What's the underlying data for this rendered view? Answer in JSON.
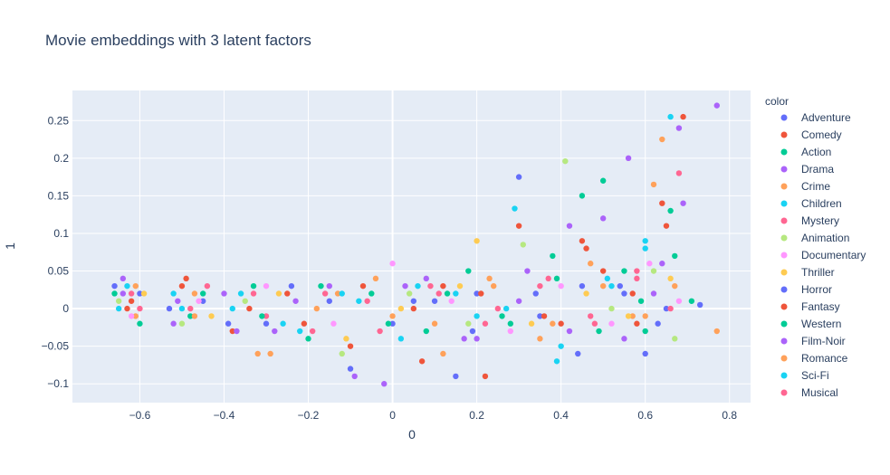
{
  "chart_data": {
    "type": "scatter",
    "title": "Movie embeddings with 3 latent factors",
    "xlabel": "0",
    "ylabel": "1",
    "xlim": [
      -0.76,
      0.85
    ],
    "ylim": [
      -0.125,
      0.29
    ],
    "x_ticks": [
      -0.6,
      -0.4,
      -0.2,
      0,
      0.2,
      0.4,
      0.6,
      0.8
    ],
    "x_tick_labels": [
      "−0.6",
      "−0.4",
      "−0.2",
      "0",
      "0.2",
      "0.4",
      "0.6",
      "0.8"
    ],
    "y_ticks": [
      -0.1,
      -0.05,
      0,
      0.05,
      0.1,
      0.15,
      0.2,
      0.25
    ],
    "y_tick_labels": [
      "−0.1",
      "−0.05",
      "0",
      "0.05",
      "0.1",
      "0.15",
      "0.2",
      "0.25"
    ],
    "grid": true,
    "legend": {
      "title": "color",
      "placement": "right"
    },
    "series": [
      {
        "name": "Adventure",
        "color": "#636efa",
        "points": [
          [
            -0.6,
            0.02
          ],
          [
            -0.45,
            0.01
          ],
          [
            -0.3,
            -0.02
          ],
          [
            -0.15,
            0.01
          ],
          [
            0.0,
            -0.02
          ],
          [
            0.1,
            0.01
          ],
          [
            0.15,
            -0.09
          ],
          [
            0.2,
            0.02
          ],
          [
            0.3,
            0.175
          ],
          [
            0.35,
            -0.01
          ],
          [
            0.45,
            0.03
          ],
          [
            0.55,
            0.02
          ],
          [
            0.6,
            -0.06
          ],
          [
            0.65,
            0.0
          ],
          [
            0.73,
            0.005
          ]
        ]
      },
      {
        "name": "Comedy",
        "color": "#ef553b",
        "points": [
          [
            -0.62,
            0.01
          ],
          [
            -0.5,
            0.03
          ],
          [
            -0.38,
            -0.03
          ],
          [
            -0.25,
            0.02
          ],
          [
            -0.1,
            -0.05
          ],
          [
            0.05,
            0.0
          ],
          [
            0.12,
            0.03
          ],
          [
            0.22,
            -0.09
          ],
          [
            0.3,
            0.11
          ],
          [
            0.4,
            -0.02
          ],
          [
            0.45,
            0.09
          ],
          [
            0.5,
            0.05
          ],
          [
            0.58,
            -0.02
          ],
          [
            0.64,
            0.14
          ],
          [
            0.69,
            0.255
          ]
        ]
      },
      {
        "name": "Action",
        "color": "#00cc96",
        "points": [
          [
            -0.66,
            0.02
          ],
          [
            -0.48,
            -0.01
          ],
          [
            -0.33,
            0.03
          ],
          [
            -0.2,
            -0.04
          ],
          [
            -0.05,
            0.02
          ],
          [
            0.08,
            -0.03
          ],
          [
            0.18,
            0.05
          ],
          [
            0.28,
            -0.02
          ],
          [
            0.38,
            0.07
          ],
          [
            0.45,
            0.15
          ],
          [
            0.5,
            0.17
          ],
          [
            0.55,
            0.05
          ],
          [
            0.6,
            -0.03
          ],
          [
            0.66,
            0.13
          ],
          [
            0.71,
            0.01
          ]
        ]
      },
      {
        "name": "Drama",
        "color": "#ab63fa",
        "points": [
          [
            -0.64,
            0.04
          ],
          [
            -0.52,
            -0.02
          ],
          [
            -0.4,
            0.02
          ],
          [
            -0.28,
            -0.03
          ],
          [
            -0.15,
            0.03
          ],
          [
            -0.02,
            -0.1
          ],
          [
            0.08,
            0.04
          ],
          [
            0.2,
            -0.04
          ],
          [
            0.32,
            0.05
          ],
          [
            0.42,
            -0.03
          ],
          [
            0.5,
            0.12
          ],
          [
            0.56,
            0.2
          ],
          [
            0.62,
            0.02
          ],
          [
            0.68,
            0.24
          ],
          [
            0.77,
            0.27
          ]
        ]
      },
      {
        "name": "Crime",
        "color": "#ffa15a",
        "points": [
          [
            -0.61,
            -0.01
          ],
          [
            -0.47,
            0.02
          ],
          [
            -0.32,
            -0.06
          ],
          [
            -0.18,
            0.0
          ],
          [
            -0.04,
            0.04
          ],
          [
            0.1,
            -0.02
          ],
          [
            0.24,
            0.03
          ],
          [
            0.35,
            -0.04
          ],
          [
            0.47,
            0.06
          ],
          [
            0.57,
            -0.01
          ],
          [
            0.62,
            0.165
          ],
          [
            0.64,
            0.225
          ],
          [
            0.77,
            -0.03
          ]
        ]
      },
      {
        "name": "Children",
        "color": "#19d3f3",
        "points": [
          [
            -0.63,
            0.03
          ],
          [
            -0.5,
            0.0
          ],
          [
            -0.36,
            0.02
          ],
          [
            -0.22,
            -0.03
          ],
          [
            -0.08,
            0.01
          ],
          [
            0.06,
            0.03
          ],
          [
            0.2,
            -0.01
          ],
          [
            0.29,
            0.133
          ],
          [
            0.4,
            -0.05
          ],
          [
            0.52,
            0.03
          ],
          [
            0.6,
            0.08
          ],
          [
            0.66,
            0.255
          ]
        ]
      },
      {
        "name": "Mystery",
        "color": "#ff6692",
        "points": [
          [
            -0.6,
            0.0
          ],
          [
            -0.44,
            0.03
          ],
          [
            -0.3,
            -0.01
          ],
          [
            -0.16,
            0.02
          ],
          [
            -0.03,
            -0.03
          ],
          [
            0.11,
            0.02
          ],
          [
            0.25,
            0.0
          ],
          [
            0.37,
            0.04
          ],
          [
            0.48,
            -0.02
          ],
          [
            0.58,
            0.04
          ],
          [
            0.68,
            0.18
          ]
        ]
      },
      {
        "name": "Animation",
        "color": "#b6e880",
        "points": [
          [
            -0.65,
            0.01
          ],
          [
            -0.5,
            -0.02
          ],
          [
            -0.35,
            0.01
          ],
          [
            -0.12,
            -0.06
          ],
          [
            0.04,
            0.02
          ],
          [
            0.18,
            -0.02
          ],
          [
            0.31,
            0.085
          ],
          [
            0.41,
            0.196
          ],
          [
            0.52,
            0.0
          ],
          [
            0.62,
            0.05
          ],
          [
            0.67,
            -0.04
          ]
        ]
      },
      {
        "name": "Documentary",
        "color": "#ff97ff",
        "points": [
          [
            -0.62,
            -0.01
          ],
          [
            -0.46,
            0.01
          ],
          [
            -0.3,
            0.03
          ],
          [
            -0.14,
            -0.02
          ],
          [
            0.0,
            0.06
          ],
          [
            0.14,
            0.01
          ],
          [
            0.28,
            -0.03
          ],
          [
            0.4,
            0.03
          ],
          [
            0.52,
            -0.02
          ],
          [
            0.61,
            0.06
          ],
          [
            0.68,
            0.01
          ]
        ]
      },
      {
        "name": "Thriller",
        "color": "#fecb52",
        "points": [
          [
            -0.59,
            0.02
          ],
          [
            -0.43,
            -0.01
          ],
          [
            -0.27,
            0.02
          ],
          [
            -0.11,
            -0.04
          ],
          [
            0.02,
            0.0
          ],
          [
            0.16,
            0.03
          ],
          [
            0.2,
            0.09
          ],
          [
            0.33,
            -0.02
          ],
          [
            0.46,
            0.02
          ],
          [
            0.56,
            -0.01
          ],
          [
            0.66,
            0.04
          ]
        ]
      },
      {
        "name": "Horror",
        "color": "#636efa",
        "points": [
          [
            -0.66,
            0.03
          ],
          [
            -0.53,
            0.0
          ],
          [
            -0.39,
            -0.02
          ],
          [
            -0.24,
            0.03
          ],
          [
            -0.1,
            -0.08
          ],
          [
            0.05,
            0.01
          ],
          [
            0.19,
            -0.03
          ],
          [
            0.34,
            0.02
          ],
          [
            0.44,
            -0.06
          ],
          [
            0.54,
            0.03
          ],
          [
            0.63,
            -0.02
          ]
        ]
      },
      {
        "name": "Fantasy",
        "color": "#ef553b",
        "points": [
          [
            -0.63,
            0.0
          ],
          [
            -0.49,
            0.04
          ],
          [
            -0.34,
            0.0
          ],
          [
            -0.21,
            -0.02
          ],
          [
            -0.07,
            0.03
          ],
          [
            0.07,
            -0.07
          ],
          [
            0.21,
            0.02
          ],
          [
            0.36,
            -0.01
          ],
          [
            0.46,
            0.08
          ],
          [
            0.57,
            0.02
          ],
          [
            0.65,
            0.11
          ]
        ]
      },
      {
        "name": "Western",
        "color": "#00cc96",
        "points": [
          [
            -0.6,
            -0.02
          ],
          [
            -0.45,
            0.02
          ],
          [
            -0.31,
            -0.01
          ],
          [
            -0.17,
            0.03
          ],
          [
            -0.01,
            -0.02
          ],
          [
            0.13,
            0.02
          ],
          [
            0.26,
            -0.01
          ],
          [
            0.39,
            0.04
          ],
          [
            0.49,
            -0.03
          ],
          [
            0.59,
            0.01
          ],
          [
            0.67,
            0.07
          ]
        ]
      },
      {
        "name": "Film-Noir",
        "color": "#ab63fa",
        "points": [
          [
            -0.64,
            0.02
          ],
          [
            -0.51,
            0.01
          ],
          [
            -0.37,
            -0.03
          ],
          [
            -0.23,
            0.01
          ],
          [
            -0.09,
            -0.09
          ],
          [
            0.03,
            0.03
          ],
          [
            0.17,
            -0.04
          ],
          [
            0.3,
            0.01
          ],
          [
            0.42,
            0.11
          ],
          [
            0.55,
            -0.04
          ],
          [
            0.64,
            0.06
          ],
          [
            0.69,
            0.14
          ]
        ]
      },
      {
        "name": "Romance",
        "color": "#ffa15a",
        "points": [
          [
            -0.61,
            0.03
          ],
          [
            -0.47,
            -0.01
          ],
          [
            -0.29,
            -0.06
          ],
          [
            -0.13,
            0.02
          ],
          [
            0.0,
            -0.01
          ],
          [
            0.12,
            -0.06
          ],
          [
            0.23,
            0.04
          ],
          [
            0.38,
            -0.02
          ],
          [
            0.5,
            0.03
          ],
          [
            0.6,
            -0.01
          ],
          [
            0.67,
            0.03
          ]
        ]
      },
      {
        "name": "Sci-Fi",
        "color": "#19d3f3",
        "points": [
          [
            -0.65,
            0.0
          ],
          [
            -0.52,
            0.02
          ],
          [
            -0.38,
            0.0
          ],
          [
            -0.26,
            -0.02
          ],
          [
            -0.12,
            0.02
          ],
          [
            0.02,
            -0.04
          ],
          [
            0.15,
            0.02
          ],
          [
            0.27,
            0.0
          ],
          [
            0.39,
            -0.07
          ],
          [
            0.51,
            0.04
          ],
          [
            0.6,
            0.09
          ]
        ]
      },
      {
        "name": "Musical",
        "color": "#ff6692",
        "points": [
          [
            -0.62,
            0.02
          ],
          [
            -0.48,
            0.0
          ],
          [
            -0.33,
            0.02
          ],
          [
            -0.19,
            -0.03
          ],
          [
            -0.06,
            0.01
          ],
          [
            0.09,
            0.03
          ],
          [
            0.22,
            -0.02
          ],
          [
            0.35,
            0.03
          ],
          [
            0.47,
            -0.01
          ],
          [
            0.58,
            0.05
          ],
          [
            0.66,
            0.0
          ]
        ]
      }
    ]
  }
}
